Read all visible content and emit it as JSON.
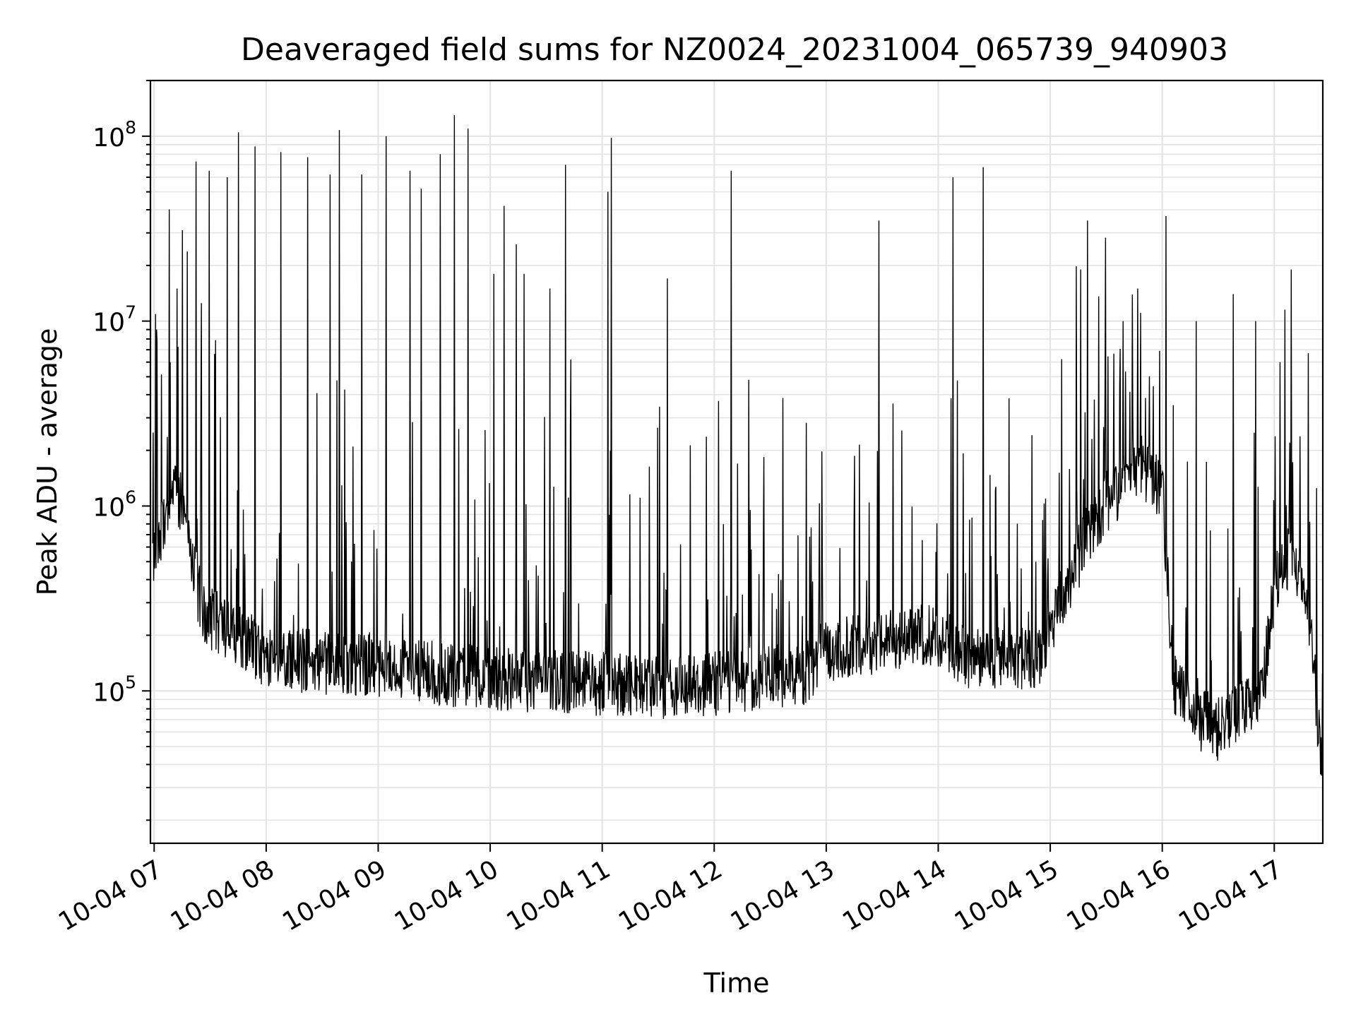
{
  "chart_data": {
    "type": "line",
    "title": "Deaveraged field sums for NZ0024_20231004_065739_940903",
    "xlabel": "Time",
    "ylabel": "Peak ADU - average",
    "yscale": "log",
    "xlim": [
      "10-04 06:58",
      "10-04 17:26"
    ],
    "ylim": [
      15000,
      200000000
    ],
    "grid": true,
    "line_color": "#000000",
    "x_ticks": [
      "10-04 07",
      "10-04 08",
      "10-04 09",
      "10-04 10",
      "10-04 11",
      "10-04 12",
      "10-04 13",
      "10-04 14",
      "10-04 15",
      "10-04 16",
      "10-04 17"
    ],
    "y_ticks": [
      {
        "value": 100000,
        "base": "10",
        "exp": "5"
      },
      {
        "value": 1000000,
        "base": "10",
        "exp": "6"
      },
      {
        "value": 10000000,
        "base": "10",
        "exp": "7"
      },
      {
        "value": 100000000,
        "base": "10",
        "exp": "8"
      }
    ],
    "series": [
      {
        "x_unit": "hours",
        "baseline": [
          [
            6.98,
            450000
          ],
          [
            7.05,
            700000
          ],
          [
            7.12,
            900000
          ],
          [
            7.2,
            1200000
          ],
          [
            7.28,
            800000
          ],
          [
            7.36,
            450000
          ],
          [
            7.42,
            260000
          ],
          [
            7.55,
            230000
          ],
          [
            7.7,
            200000
          ],
          [
            7.85,
            170000
          ],
          [
            8.0,
            150000
          ],
          [
            8.3,
            140000
          ],
          [
            8.6,
            135000
          ],
          [
            9.0,
            130000
          ],
          [
            9.5,
            120000
          ],
          [
            10.0,
            112000
          ],
          [
            10.5,
            108000
          ],
          [
            11.0,
            105000
          ],
          [
            11.5,
            100000
          ],
          [
            12.0,
            105000
          ],
          [
            12.5,
            115000
          ],
          [
            12.8,
            120000
          ],
          [
            13.0,
            160000
          ],
          [
            13.3,
            170000
          ],
          [
            13.6,
            180000
          ],
          [
            13.9,
            200000
          ],
          [
            14.1,
            170000
          ],
          [
            14.3,
            130000
          ],
          [
            14.6,
            150000
          ],
          [
            14.9,
            140000
          ],
          [
            15.1,
            300000
          ],
          [
            15.3,
            600000
          ],
          [
            15.5,
            1000000
          ],
          [
            15.8,
            1600000
          ],
          [
            16.0,
            1200000
          ],
          [
            16.1,
            110000
          ],
          [
            16.3,
            70000
          ],
          [
            16.5,
            60000
          ],
          [
            16.7,
            75000
          ],
          [
            16.9,
            100000
          ],
          [
            17.0,
            350000
          ],
          [
            17.15,
            550000
          ],
          [
            17.3,
            300000
          ],
          [
            17.38,
            80000
          ],
          [
            17.43,
            30000
          ]
        ],
        "spikes": [
          [
            7.02,
            9000000
          ],
          [
            7.14,
            6000000
          ],
          [
            7.2,
            15000000
          ],
          [
            7.25,
            31000000
          ],
          [
            7.37,
            73000000
          ],
          [
            7.42,
            12500000
          ],
          [
            7.49,
            65000000
          ],
          [
            7.65,
            60000000
          ],
          [
            7.75,
            105000000
          ],
          [
            7.9,
            88000000
          ],
          [
            8.13,
            82000000
          ],
          [
            8.37,
            77000000
          ],
          [
            8.57,
            62000000
          ],
          [
            8.65,
            108000000
          ],
          [
            8.85,
            62000000
          ],
          [
            9.07,
            100000000
          ],
          [
            9.28,
            65000000
          ],
          [
            9.38,
            52000000
          ],
          [
            9.55,
            80000000
          ],
          [
            9.68,
            130000000
          ],
          [
            9.8,
            110000000
          ],
          [
            10.03,
            18000000
          ],
          [
            10.12,
            42000000
          ],
          [
            10.23,
            26000000
          ],
          [
            10.3,
            18000000
          ],
          [
            10.53,
            15000000
          ],
          [
            10.67,
            70000000
          ],
          [
            10.72,
            6200000
          ],
          [
            11.05,
            50000000
          ],
          [
            11.08,
            98000000
          ],
          [
            11.58,
            17000000
          ],
          [
            12.15,
            65000000
          ],
          [
            13.47,
            35000000
          ],
          [
            14.13,
            60000000
          ],
          [
            14.4,
            68000000
          ],
          [
            15.27,
            19000000
          ],
          [
            15.33,
            35000000
          ],
          [
            15.65,
            10000000
          ],
          [
            15.78,
            15000000
          ],
          [
            16.03,
            37000000
          ],
          [
            16.3,
            10000000
          ],
          [
            16.63,
            14000000
          ],
          [
            16.83,
            10000000
          ],
          [
            17.05,
            6000000
          ],
          [
            17.15,
            19000000
          ],
          [
            17.3,
            6700000
          ]
        ]
      }
    ]
  }
}
